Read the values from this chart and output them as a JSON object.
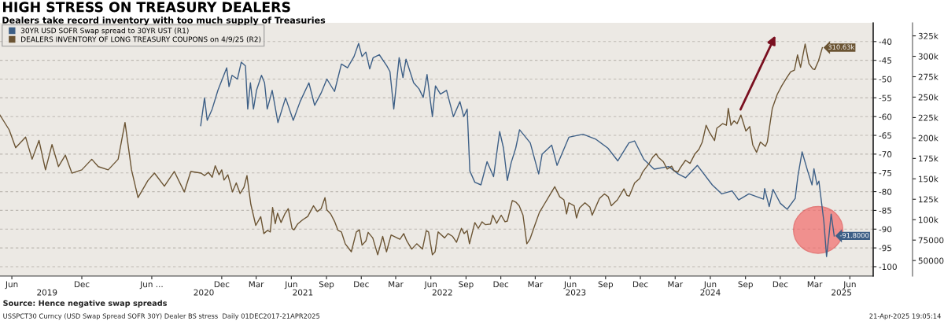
{
  "chart_data": {
    "type": "line",
    "title": "HIGH STRESS ON TREASURY DEALERS",
    "subtitle": "Dealers take record inventory with too much supply of Treasuries",
    "annotations": [
      "Source: Hence negative swap spreads",
      "USSPCT30 Curncy (USD Swap Spread SOFR 30Y) Dealer BS stress  Daily 01DEC2017-21APR2025",
      "21-Apr-2025 19:05:14"
    ],
    "series": [
      {
        "name": "30YR USD SOFR Swap spread to 30YR UST (R1)",
        "color": "#3d5f86",
        "axis": "y",
        "x": [
          "2020-10-07",
          "2020-10-17",
          "2020-10-24",
          "2020-11-06",
          "2020-11-21",
          "2020-12-14",
          "2020-12-20",
          "2020-12-28",
          "2021-01-11",
          "2021-01-21",
          "2021-02-01",
          "2021-02-07",
          "2021-02-14",
          "2021-02-22",
          "2021-03-02",
          "2021-03-15",
          "2021-03-23",
          "2021-03-30",
          "2021-04-12",
          "2021-04-27",
          "2021-05-17",
          "2021-06-06",
          "2021-06-24",
          "2021-07-17",
          "2021-08-01",
          "2021-08-18",
          "2021-09-02",
          "2021-09-22",
          "2021-10-10",
          "2021-10-26",
          "2021-11-12",
          "2021-11-24",
          "2021-12-03",
          "2021-12-13",
          "2021-12-23",
          "2022-01-01",
          "2022-01-17",
          "2022-02-06",
          "2022-02-14",
          "2022-02-24",
          "2022-03-10",
          "2022-03-20",
          "2022-03-28",
          "2022-04-17",
          "2022-05-01",
          "2022-05-12",
          "2022-05-22",
          "2022-06-05",
          "2022-06-13",
          "2022-06-26",
          "2022-07-12",
          "2022-07-30",
          "2022-08-16",
          "2022-08-26",
          "2022-09-04",
          "2022-09-11",
          "2022-09-24",
          "2022-10-10",
          "2022-10-26",
          "2022-11-12",
          "2022-11-28",
          "2022-12-08",
          "2022-12-18",
          "2022-12-28",
          "2023-01-09",
          "2023-01-19",
          "2023-02-16",
          "2023-03-10",
          "2023-03-19",
          "2023-04-13",
          "2023-04-27",
          "2023-05-28",
          "2023-07-04",
          "2023-08-06",
          "2023-09-07",
          "2023-10-03",
          "2023-11-01",
          "2023-11-16",
          "2023-12-10",
          "2024-01-06",
          "2024-02-13",
          "2024-03-09",
          "2024-03-28",
          "2024-04-28",
          "2024-06-06",
          "2024-07-01",
          "2024-07-28",
          "2024-08-14",
          "2024-09-10",
          "2024-10-18",
          "2024-10-21",
          "2024-11-02",
          "2024-11-12",
          "2024-12-01",
          "2024-12-19",
          "2025-01-09",
          "2025-01-16",
          "2025-01-27",
          "2025-02-10",
          "2025-02-22",
          "2025-02-27",
          "2025-03-07",
          "2025-03-12",
          "2025-03-25",
          "2025-04-01",
          "2025-04-07",
          "2025-04-13",
          "2025-04-21"
        ],
        "values": [
          -62.4,
          -55,
          -61,
          -58,
          -53,
          -47,
          -52,
          -49,
          -50,
          -45.5,
          -46.5,
          -58,
          -51,
          -58,
          -53,
          -49,
          -51,
          -58,
          -53,
          -61.6,
          -55,
          -61,
          -56,
          -51,
          -57,
          -53.7,
          -50,
          -53.3,
          -46,
          -47,
          -44,
          -40.5,
          -44,
          -42.8,
          -47.3,
          -44.3,
          -43.5,
          -46.5,
          -48,
          -58,
          -44.3,
          -49.6,
          -44.7,
          -51,
          -52.6,
          -54.9,
          -48.8,
          -60,
          -51.8,
          -54,
          -53,
          -60,
          -56,
          -60,
          -58,
          -74.5,
          -77.5,
          -78.2,
          -72,
          -76,
          -64,
          -68.4,
          -77,
          -72.3,
          -68.4,
          -63.5,
          -67,
          -75.3,
          -70,
          -67.6,
          -73,
          -65.5,
          -64.7,
          -66,
          -68.4,
          -71.8,
          -67,
          -66.5,
          -71.4,
          -74,
          -73.3,
          -75.3,
          -76.3,
          -73,
          -78.2,
          -80.6,
          -79.8,
          -82.2,
          -80.6,
          -82,
          -79.2,
          -84,
          -79.4,
          -83.1,
          -84.7,
          -81.8,
          -75.9,
          -69.4,
          -74.3,
          -78.2,
          -73.9,
          -78.2,
          -77.2,
          -88,
          -97.3,
          -92,
          -86,
          -91.8
        ],
        "value_labels": [
          null,
          null,
          null,
          null,
          null,
          null,
          null,
          null,
          null,
          null,
          null,
          null,
          null,
          null,
          null,
          null,
          null,
          null,
          null,
          null,
          null,
          null,
          null,
          null,
          null,
          null,
          null,
          null,
          null,
          null,
          null,
          null,
          null,
          null,
          null,
          null,
          null,
          null,
          null,
          null,
          null,
          null,
          null,
          null,
          null,
          null,
          null,
          null,
          null,
          null,
          null,
          null,
          null,
          null,
          null,
          null,
          null,
          null,
          null,
          null,
          null,
          null,
          null,
          null,
          null,
          null,
          null,
          null,
          null,
          null,
          null,
          null,
          null,
          null,
          null,
          null,
          null,
          null,
          null,
          null,
          null,
          null,
          null,
          null,
          null,
          null,
          null,
          null,
          null,
          null,
          null,
          null,
          null,
          null,
          null,
          null,
          null,
          null,
          null,
          null,
          null,
          null,
          null,
          null,
          null,
          null,
          null,
          "-91.8000"
        ]
      },
      {
        "name": "DEALERS INVENTORY OF LONG TREASURY COUPONS on 4/9/25 (R2)",
        "color": "#6b5433",
        "axis": "y2",
        "x": [
          "2019-05-01",
          "2019-05-25",
          "2019-06-11",
          "2019-07-07",
          "2019-07-24",
          "2019-08-11",
          "2019-08-28",
          "2019-09-14",
          "2019-10-01",
          "2019-10-19",
          "2019-11-05",
          "2019-12-01",
          "2019-12-27",
          "2020-01-13",
          "2020-02-08",
          "2020-03-05",
          "2020-03-23",
          "2020-04-09",
          "2020-04-26",
          "2020-05-22",
          "2020-06-08",
          "2020-07-04",
          "2020-07-30",
          "2020-08-25",
          "2020-09-11",
          "2020-10-08",
          "2020-10-17",
          "2020-10-27",
          "2020-11-06",
          "2020-11-14",
          "2020-11-24",
          "2020-12-01",
          "2020-12-07",
          "2020-12-17",
          "2020-12-24",
          "2020-12-29",
          "2021-01-08",
          "2021-01-18",
          "2021-01-28",
          "2021-02-05",
          "2021-02-15",
          "2021-02-28",
          "2021-03-13",
          "2021-03-21",
          "2021-03-31",
          "2021-04-07",
          "2021-04-13",
          "2021-04-20",
          "2021-04-26",
          "2021-05-05",
          "2021-05-15",
          "2021-05-24",
          "2021-06-03",
          "2021-06-08",
          "2021-06-18",
          "2021-07-01",
          "2021-07-14",
          "2021-07-29",
          "2021-08-08",
          "2021-08-18",
          "2021-08-28",
          "2021-09-02",
          "2021-09-12",
          "2021-09-22",
          "2021-10-01",
          "2021-10-10",
          "2021-10-20",
          "2021-11-05",
          "2021-11-18",
          "2021-11-26",
          "2021-12-03",
          "2021-12-13",
          "2021-12-19",
          "2021-12-31",
          "2022-01-13",
          "2022-01-26",
          "2022-02-05",
          "2022-02-17",
          "2022-03-12",
          "2022-03-22",
          "2022-03-30",
          "2022-04-12",
          "2022-04-25",
          "2022-05-10",
          "2022-05-20",
          "2022-05-26",
          "2022-06-05",
          "2022-06-12",
          "2022-06-20",
          "2022-07-07",
          "2022-07-16",
          "2022-07-28",
          "2022-08-07",
          "2022-08-20",
          "2022-08-27",
          "2022-09-04",
          "2022-09-10",
          "2022-09-24",
          "2022-10-03",
          "2022-10-13",
          "2022-10-22",
          "2022-11-04",
          "2022-11-10",
          "2022-11-20",
          "2022-12-02",
          "2022-12-12",
          "2022-12-18",
          "2022-12-31",
          "2023-01-09",
          "2023-01-18",
          "2023-01-28",
          "2023-02-07",
          "2023-02-15",
          "2023-03-01",
          "2023-03-12",
          "2023-03-27",
          "2023-04-21",
          "2023-05-04",
          "2023-05-15",
          "2023-05-22",
          "2023-05-28",
          "2023-06-11",
          "2023-06-17",
          "2023-06-25",
          "2023-07-09",
          "2023-07-22",
          "2023-07-28",
          "2023-08-16",
          "2023-08-29",
          "2023-09-08",
          "2023-09-16",
          "2023-10-02",
          "2023-10-19",
          "2023-10-27",
          "2023-11-02",
          "2023-11-16",
          "2023-11-29",
          "2023-12-07",
          "2023-12-24",
          "2024-01-02",
          "2024-01-11",
          "2024-01-17",
          "2024-01-30",
          "2024-02-09",
          "2024-02-21",
          "2024-02-27",
          "2024-03-08",
          "2024-03-15",
          "2024-03-28",
          "2024-04-09",
          "2024-04-22",
          "2024-05-02",
          "2024-05-11",
          "2024-05-21",
          "2024-05-30",
          "2024-06-12",
          "2024-06-18",
          "2024-07-03",
          "2024-07-13",
          "2024-07-18",
          "2024-07-25",
          "2024-08-02",
          "2024-08-10",
          "2024-08-20",
          "2024-09-02",
          "2024-09-12",
          "2024-09-20",
          "2024-09-30",
          "2024-10-10",
          "2024-10-23",
          "2024-10-28",
          "2024-11-10",
          "2024-11-23",
          "2024-12-05",
          "2024-12-18",
          "2024-12-28",
          "2025-01-07",
          "2025-01-15",
          "2025-01-23",
          "2025-02-04",
          "2025-02-14",
          "2025-02-24",
          "2025-03-01",
          "2025-03-11",
          "2025-03-21"
        ],
        "values": [
          228000,
          210000,
          188000,
          201000,
          174000,
          197000,
          161000,
          192000,
          165000,
          179000,
          157000,
          161000,
          174000,
          165000,
          161000,
          174000,
          219000,
          161000,
          127000,
          148000,
          157000,
          141000,
          159000,
          134000,
          159000,
          157000,
          154000,
          158000,
          152000,
          166000,
          155000,
          161000,
          148500,
          155000,
          143000,
          134000,
          145000,
          132000,
          139500,
          154000,
          119000,
          93000,
          103700,
          83000,
          87000,
          85000,
          115000,
          95000,
          108000,
          96500,
          107000,
          113500,
          89000,
          87600,
          95000,
          100000,
          104000,
          117000,
          110000,
          113500,
          127000,
          112000,
          107000,
          98000,
          87000,
          85000,
          70500,
          60700,
          85000,
          87600,
          68800,
          74000,
          84500,
          77700,
          57000,
          79500,
          60700,
          81300,
          76000,
          83000,
          74000,
          64000,
          70500,
          64000,
          86700,
          85000,
          57000,
          60700,
          85000,
          77700,
          83000,
          79500,
          72300,
          89400,
          83000,
          86700,
          70500,
          96500,
          89400,
          97400,
          93800,
          94700,
          105500,
          95600,
          105500,
          97400,
          98300,
          123400,
          121600,
          117000,
          105500,
          70500,
          76000,
          94700,
          109000,
          120700,
          140400,
          128000,
          124300,
          107000,
          120700,
          117000,
          102000,
          114400,
          120700,
          115300,
          105500,
          126000,
          131500,
          128000,
          117000,
          124300,
          137700,
          129700,
          128800,
          145000,
          150300,
          158300,
          169000,
          176300,
          180700,
          176300,
          171000,
          162000,
          165500,
          160000,
          158300,
          163800,
          172700,
          169000,
          180700,
          186000,
          195000,
          215600,
          206700,
          196800,
          212000,
          217500,
          215600,
          236300,
          215600,
          221000,
          217500,
          228200,
          208500,
          214000,
          191500,
          182500,
          195000,
          189700,
          195000,
          236000,
          253300,
          264000,
          274000,
          281000,
          283000,
          301700,
          286500,
          315000,
          291000,
          284600,
          283800,
          294500,
          310630
        ],
        "value_labels": [
          null,
          null,
          null,
          null,
          null,
          null,
          null,
          null,
          null,
          null,
          null,
          null,
          null,
          null,
          null,
          null,
          null,
          null,
          null,
          null,
          null,
          null,
          null,
          null,
          null,
          null,
          null,
          null,
          null,
          null,
          null,
          null,
          null,
          null,
          null,
          null,
          null,
          null,
          null,
          null,
          null,
          null,
          null,
          null,
          null,
          null,
          null,
          null,
          null,
          null,
          null,
          null,
          null,
          null,
          null,
          null,
          null,
          null,
          null,
          null,
          null,
          null,
          null,
          null,
          null,
          null,
          null,
          null,
          null,
          null,
          null,
          null,
          null,
          null,
          null,
          null,
          null,
          null,
          null,
          null,
          null,
          null,
          null,
          null,
          null,
          null,
          null,
          null,
          null,
          null,
          null,
          null,
          null,
          null,
          null,
          null,
          null,
          null,
          null,
          null,
          null,
          null,
          null,
          null,
          null,
          null,
          null,
          null,
          null,
          null,
          null,
          null,
          null,
          null,
          null,
          null,
          null,
          null,
          null,
          null,
          null,
          null,
          null,
          null,
          null,
          null,
          null,
          null,
          null,
          null,
          null,
          null,
          null,
          null,
          null,
          null,
          null,
          null,
          null,
          null,
          null,
          null,
          null,
          null,
          null,
          null,
          null,
          null,
          null,
          null,
          null,
          null,
          null,
          null,
          null,
          null,
          null,
          null,
          null,
          null,
          null,
          null,
          null,
          null,
          null,
          null,
          null,
          null,
          null,
          null,
          null,
          null,
          null,
          null,
          null,
          null,
          null,
          null,
          null,
          null,
          null,
          null,
          null,
          null,
          "310.63k"
        ]
      }
    ],
    "xlim": [
      "2019-05-01",
      "2025-08-01"
    ],
    "xticks": [
      {
        "value": "2019-06-01",
        "label": "Jun"
      },
      {
        "value": "2019-12-01",
        "label": "Dec"
      },
      {
        "value": "2020-06-01",
        "label": "Jun ..."
      },
      {
        "value": "2020-12-01",
        "label": "Dec"
      },
      {
        "value": "2021-03-01",
        "label": "Mar"
      },
      {
        "value": "2021-06-01",
        "label": "Jun"
      },
      {
        "value": "2021-09-01",
        "label": "Sep"
      },
      {
        "value": "2021-12-01",
        "label": "Dec"
      },
      {
        "value": "2022-03-01",
        "label": "Mar"
      },
      {
        "value": "2022-06-01",
        "label": "Jun"
      },
      {
        "value": "2022-09-01",
        "label": "Sep"
      },
      {
        "value": "2022-12-01",
        "label": "Dec"
      },
      {
        "value": "2023-03-01",
        "label": "Mar"
      },
      {
        "value": "2023-06-01",
        "label": "Jun"
      },
      {
        "value": "2023-09-01",
        "label": "Sep"
      },
      {
        "value": "2023-12-01",
        "label": "Dec"
      },
      {
        "value": "2024-03-01",
        "label": "Mar"
      },
      {
        "value": "2024-06-01",
        "label": "Jun"
      },
      {
        "value": "2024-09-01",
        "label": "Sep"
      },
      {
        "value": "2024-12-01",
        "label": "Dec"
      },
      {
        "value": "2025-03-01",
        "label": "Mar"
      },
      {
        "value": "2025-06-01",
        "label": "Jun"
      }
    ],
    "x2lim": [
      "2019-05-01",
      "2025-08-01"
    ],
    "x2ticks": [
      {
        "value": "2019-09-01",
        "label": "2019"
      },
      {
        "value": "2020-10-15",
        "label": "2020"
      },
      {
        "value": "2021-07-01",
        "label": "2021"
      },
      {
        "value": "2022-07-01",
        "label": "2022"
      },
      {
        "value": "2023-06-15",
        "label": "2023"
      },
      {
        "value": "2024-06-01",
        "label": "2024"
      },
      {
        "value": "2025-05-10",
        "label": "2025"
      }
    ],
    "ylim": [
      -102.5,
      -35
    ],
    "yticks": [
      -40,
      -45,
      -50,
      -55,
      -60,
      -65,
      -70,
      -75,
      -80,
      -85,
      -90,
      -95,
      -100
    ],
    "y2lim": [
      31000,
      341000
    ],
    "y2ticks": [
      {
        "value": 325000,
        "label": "325k"
      },
      {
        "value": 300000,
        "label": "300k"
      },
      {
        "value": 275000,
        "label": "275k"
      },
      {
        "value": 250000,
        "label": "250k"
      },
      {
        "value": 225000,
        "label": "225k"
      },
      {
        "value": 200000,
        "label": "200k"
      },
      {
        "value": 175000,
        "label": "175k"
      },
      {
        "value": 150000,
        "label": "150k"
      },
      {
        "value": 125000,
        "label": "125k"
      },
      {
        "value": 100000,
        "label": "100k"
      },
      {
        "value": 75000,
        "label": "75000"
      },
      {
        "value": 50000,
        "label": "50000"
      }
    ],
    "grid": "y",
    "legend": "top left",
    "marker": "none",
    "line_style": "solid"
  }
}
